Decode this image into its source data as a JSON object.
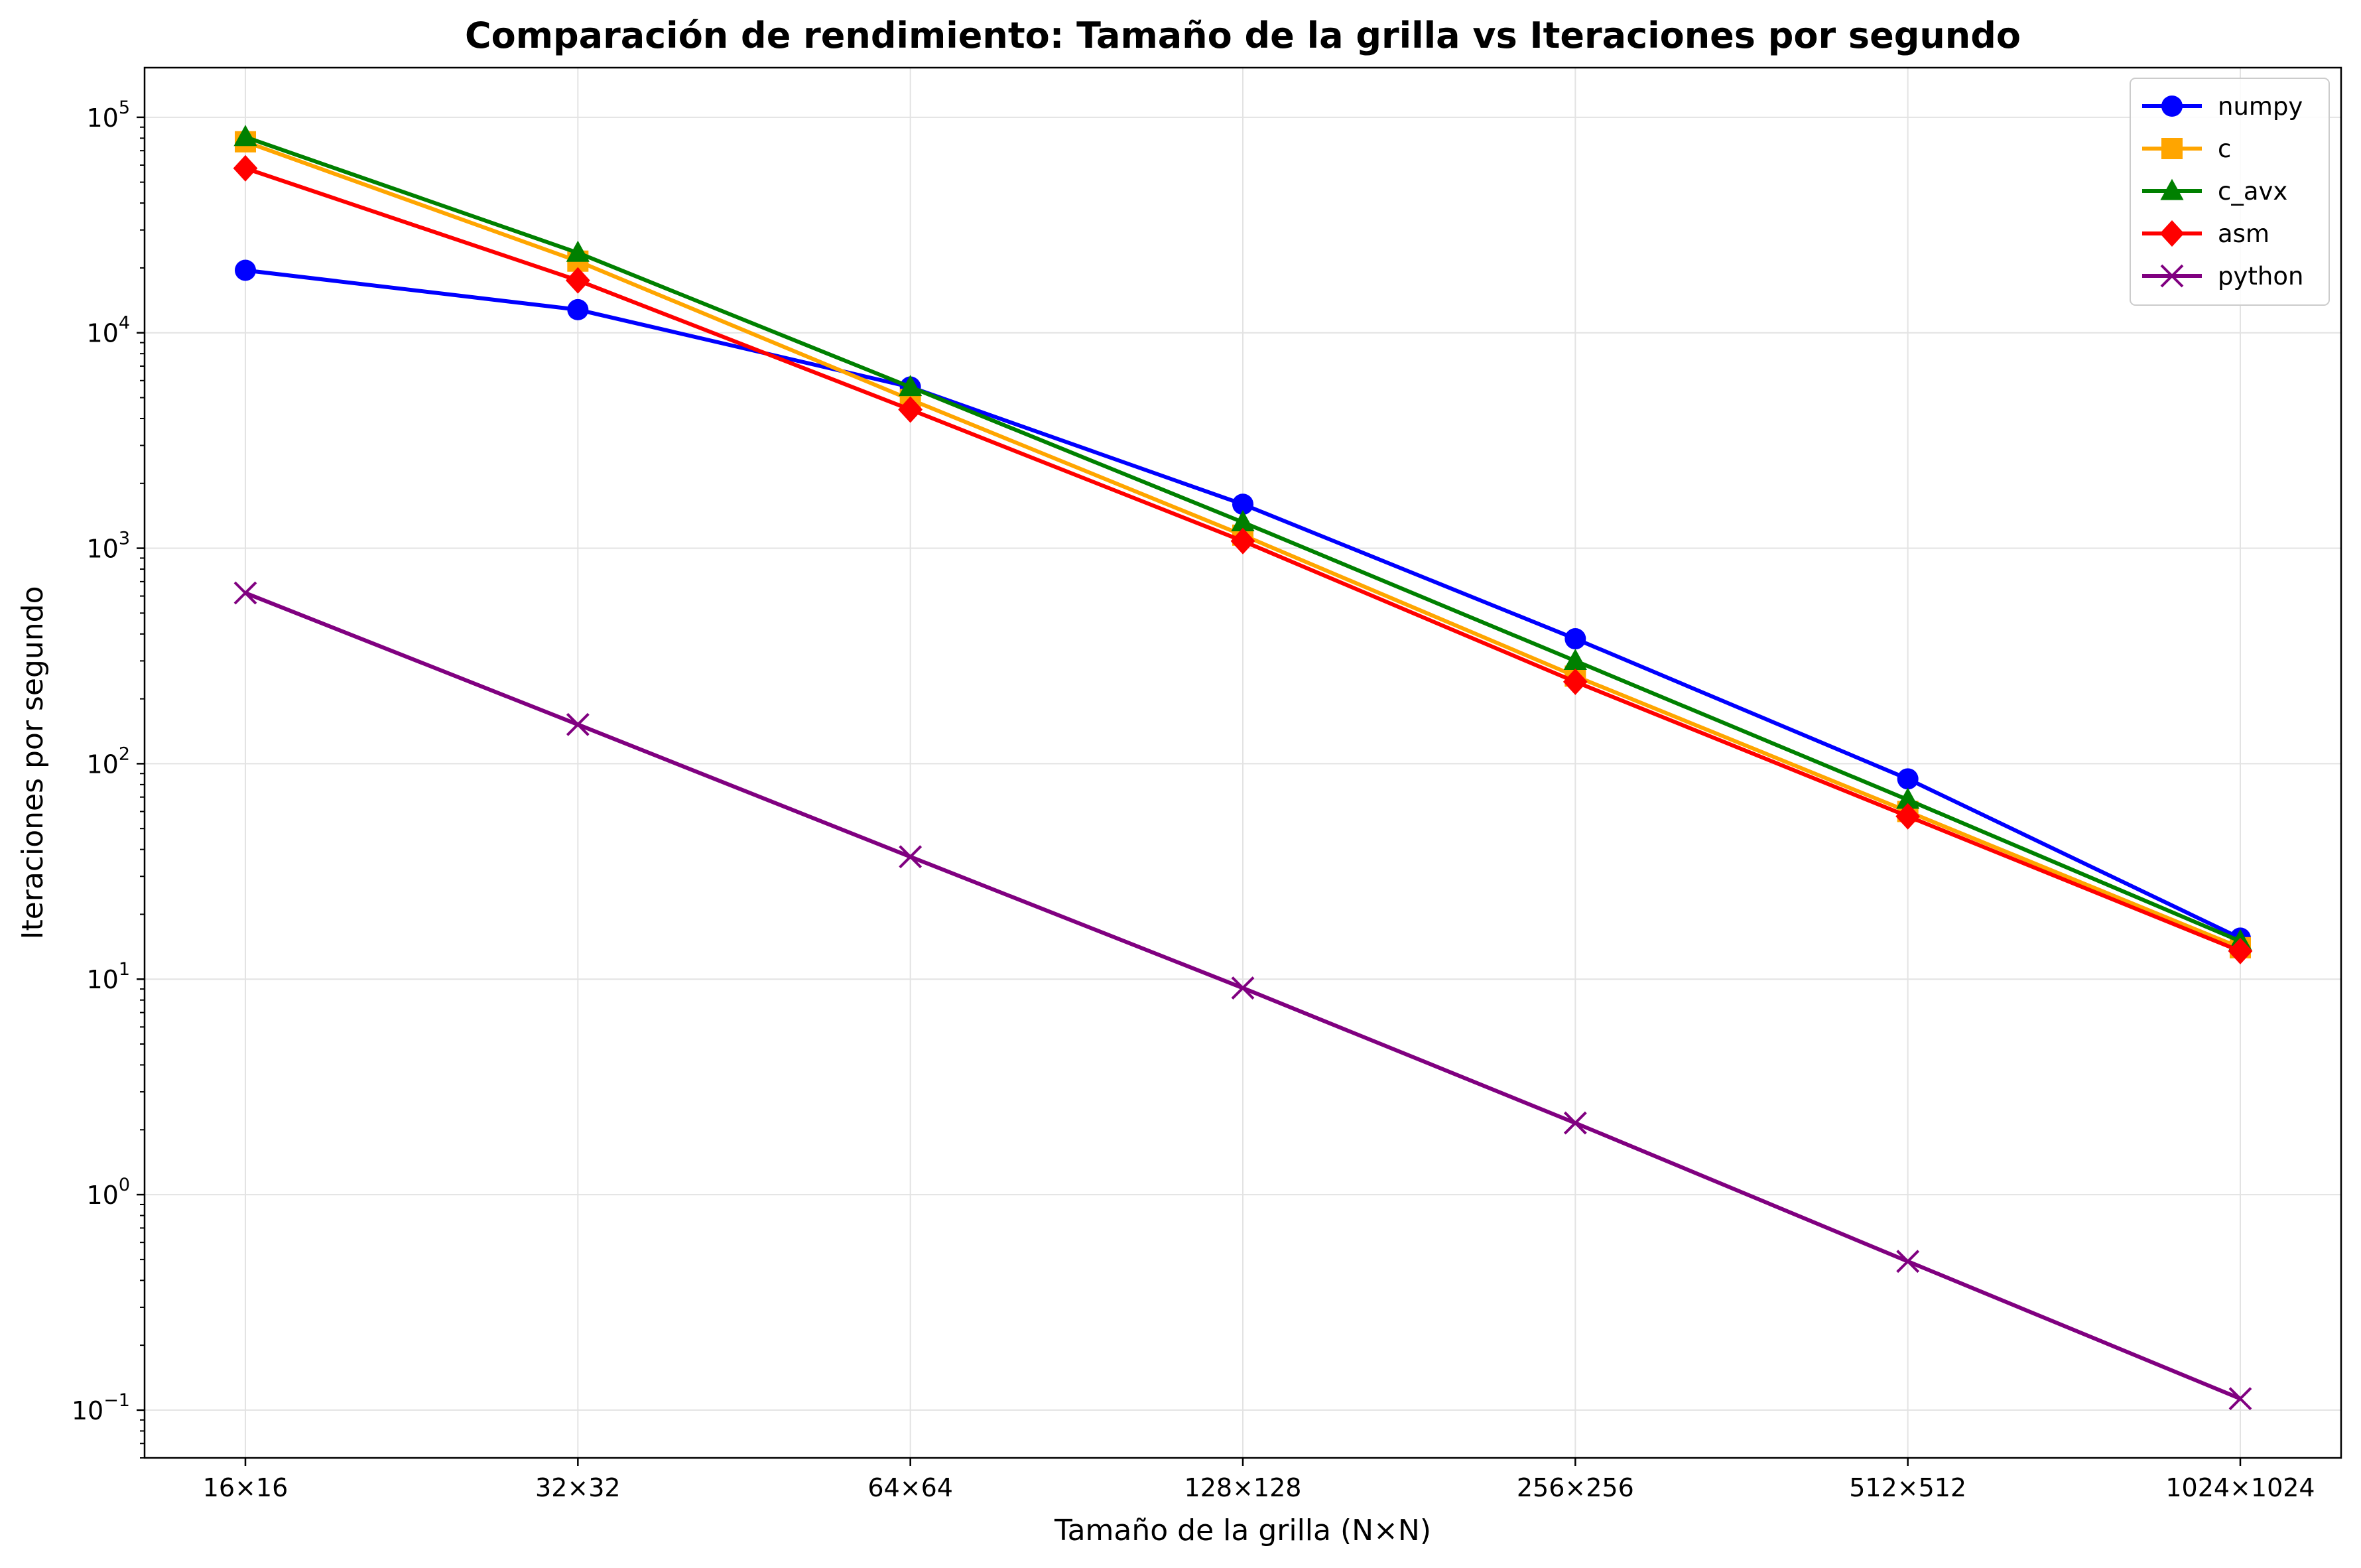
{
  "chart_data": {
    "type": "line",
    "title": "Comparación de rendimiento: Tamaño de la grilla vs Iteraciones por segundo",
    "xlabel": "Tamaño de la grilla (N×N)",
    "ylabel": "Iteraciones por segundo",
    "yscale": "log",
    "ylim": [
      0.06,
      170000
    ],
    "grid": true,
    "legend_position": "top-right",
    "categories": [
      "16×16",
      "32×32",
      "64×64",
      "128×128",
      "256×256",
      "512×512",
      "1024×1024"
    ],
    "y_ticks": [
      {
        "base": "10",
        "exp": "−1",
        "value": 0.1
      },
      {
        "base": "10",
        "exp": "0",
        "value": 1
      },
      {
        "base": "10",
        "exp": "1",
        "value": 10
      },
      {
        "base": "10",
        "exp": "2",
        "value": 100
      },
      {
        "base": "10",
        "exp": "3",
        "value": 1000
      },
      {
        "base": "10",
        "exp": "4",
        "value": 10000
      },
      {
        "base": "10",
        "exp": "5",
        "value": 100000
      }
    ],
    "series": [
      {
        "name": "numpy",
        "color": "#0000ff",
        "marker": "circle",
        "values": [
          19500,
          12800,
          5600,
          1600,
          380,
          85,
          15.5
        ]
      },
      {
        "name": "c",
        "color": "#ffa500",
        "marker": "square",
        "values": [
          77000,
          21500,
          4900,
          1150,
          255,
          60,
          14
        ]
      },
      {
        "name": "c_avx",
        "color": "#008000",
        "marker": "triangle",
        "values": [
          81000,
          23500,
          5600,
          1320,
          300,
          68,
          15
        ]
      },
      {
        "name": "asm",
        "color": "#ff0000",
        "marker": "diamond",
        "values": [
          58000,
          17500,
          4400,
          1080,
          240,
          57,
          13.5
        ]
      },
      {
        "name": "python",
        "color": "#800080",
        "marker": "x",
        "values": [
          620,
          152,
          37,
          9.1,
          2.15,
          0.49,
          0.113
        ]
      }
    ]
  }
}
